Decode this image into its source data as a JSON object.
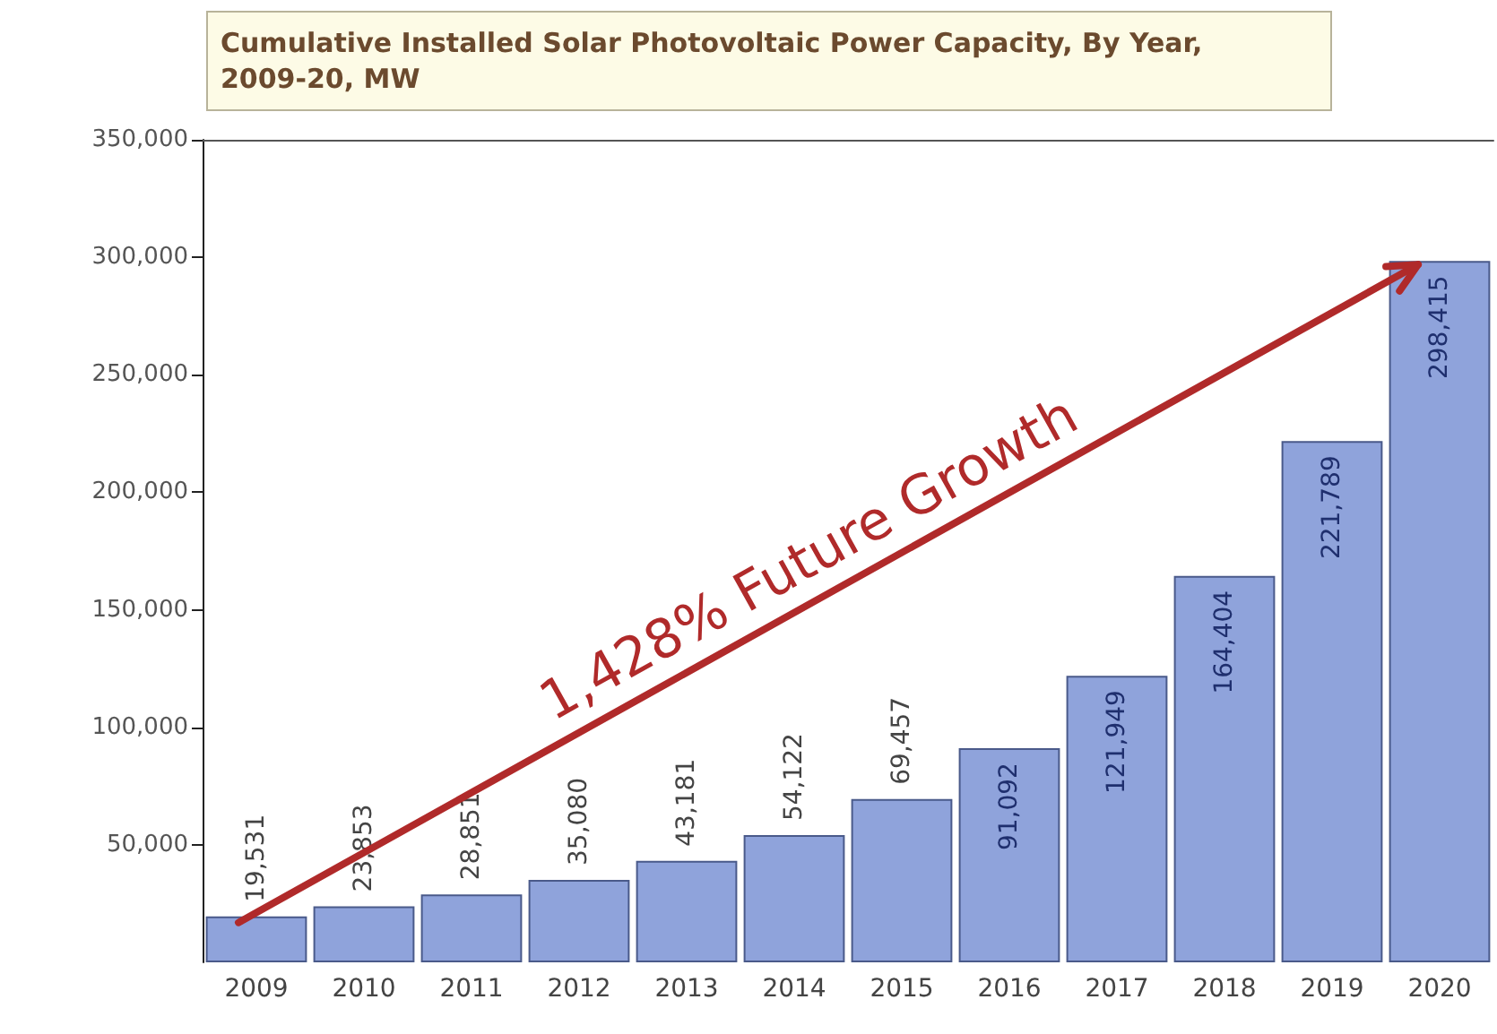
{
  "chart_data": {
    "type": "bar",
    "title": "Cumulative Installed Solar Photovoltaic Power Capacity, By Year, 2009-20, MW",
    "categories": [
      "2009",
      "2010",
      "2011",
      "2012",
      "2013",
      "2014",
      "2015",
      "2016",
      "2017",
      "2018",
      "2019",
      "2020"
    ],
    "values": [
      19531,
      23853,
      28851,
      35080,
      43181,
      54122,
      69457,
      91092,
      121949,
      164404,
      221789,
      298415
    ],
    "color": "#8fa3db",
    "ylim": [
      0,
      350000
    ],
    "yticks": [
      {
        "value": 50000,
        "label": "50,000"
      },
      {
        "value": 100000,
        "label": "100,000"
      },
      {
        "value": 150000,
        "label": "150,000"
      },
      {
        "value": 200000,
        "label": "200,000"
      },
      {
        "value": 250000,
        "label": "250,000"
      },
      {
        "value": 300000,
        "label": "300,000"
      },
      {
        "value": 350000,
        "label": "350,000"
      }
    ],
    "value_labels": [
      "19,531",
      "23,853",
      "28,851",
      "35,080",
      "43,181",
      "54,122",
      "69,457",
      "91,092",
      "121,949",
      "164,404",
      "221,789",
      "298,415"
    ],
    "grid": false,
    "annotations": [
      "1,428% Future Growth"
    ]
  }
}
